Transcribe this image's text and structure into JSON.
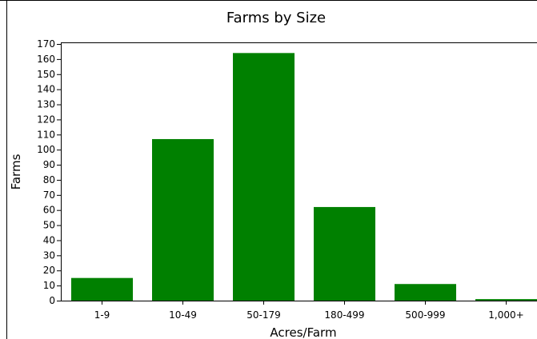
{
  "chart_data": {
    "type": "bar",
    "title": "Farms by Size",
    "xlabel": "Acres/Farm",
    "ylabel": "Farms",
    "categories": [
      "1-9",
      "10-49",
      "50-179",
      "180-499",
      "500-999",
      "1,000+"
    ],
    "values": [
      15,
      107,
      164,
      62,
      11,
      1
    ],
    "ylim": [
      0,
      170
    ],
    "yticks": [
      0,
      10,
      20,
      30,
      40,
      50,
      60,
      70,
      80,
      90,
      100,
      110,
      120,
      130,
      140,
      150,
      160,
      170
    ],
    "bar_color": "#008000",
    "grid": false,
    "legend": "none"
  }
}
